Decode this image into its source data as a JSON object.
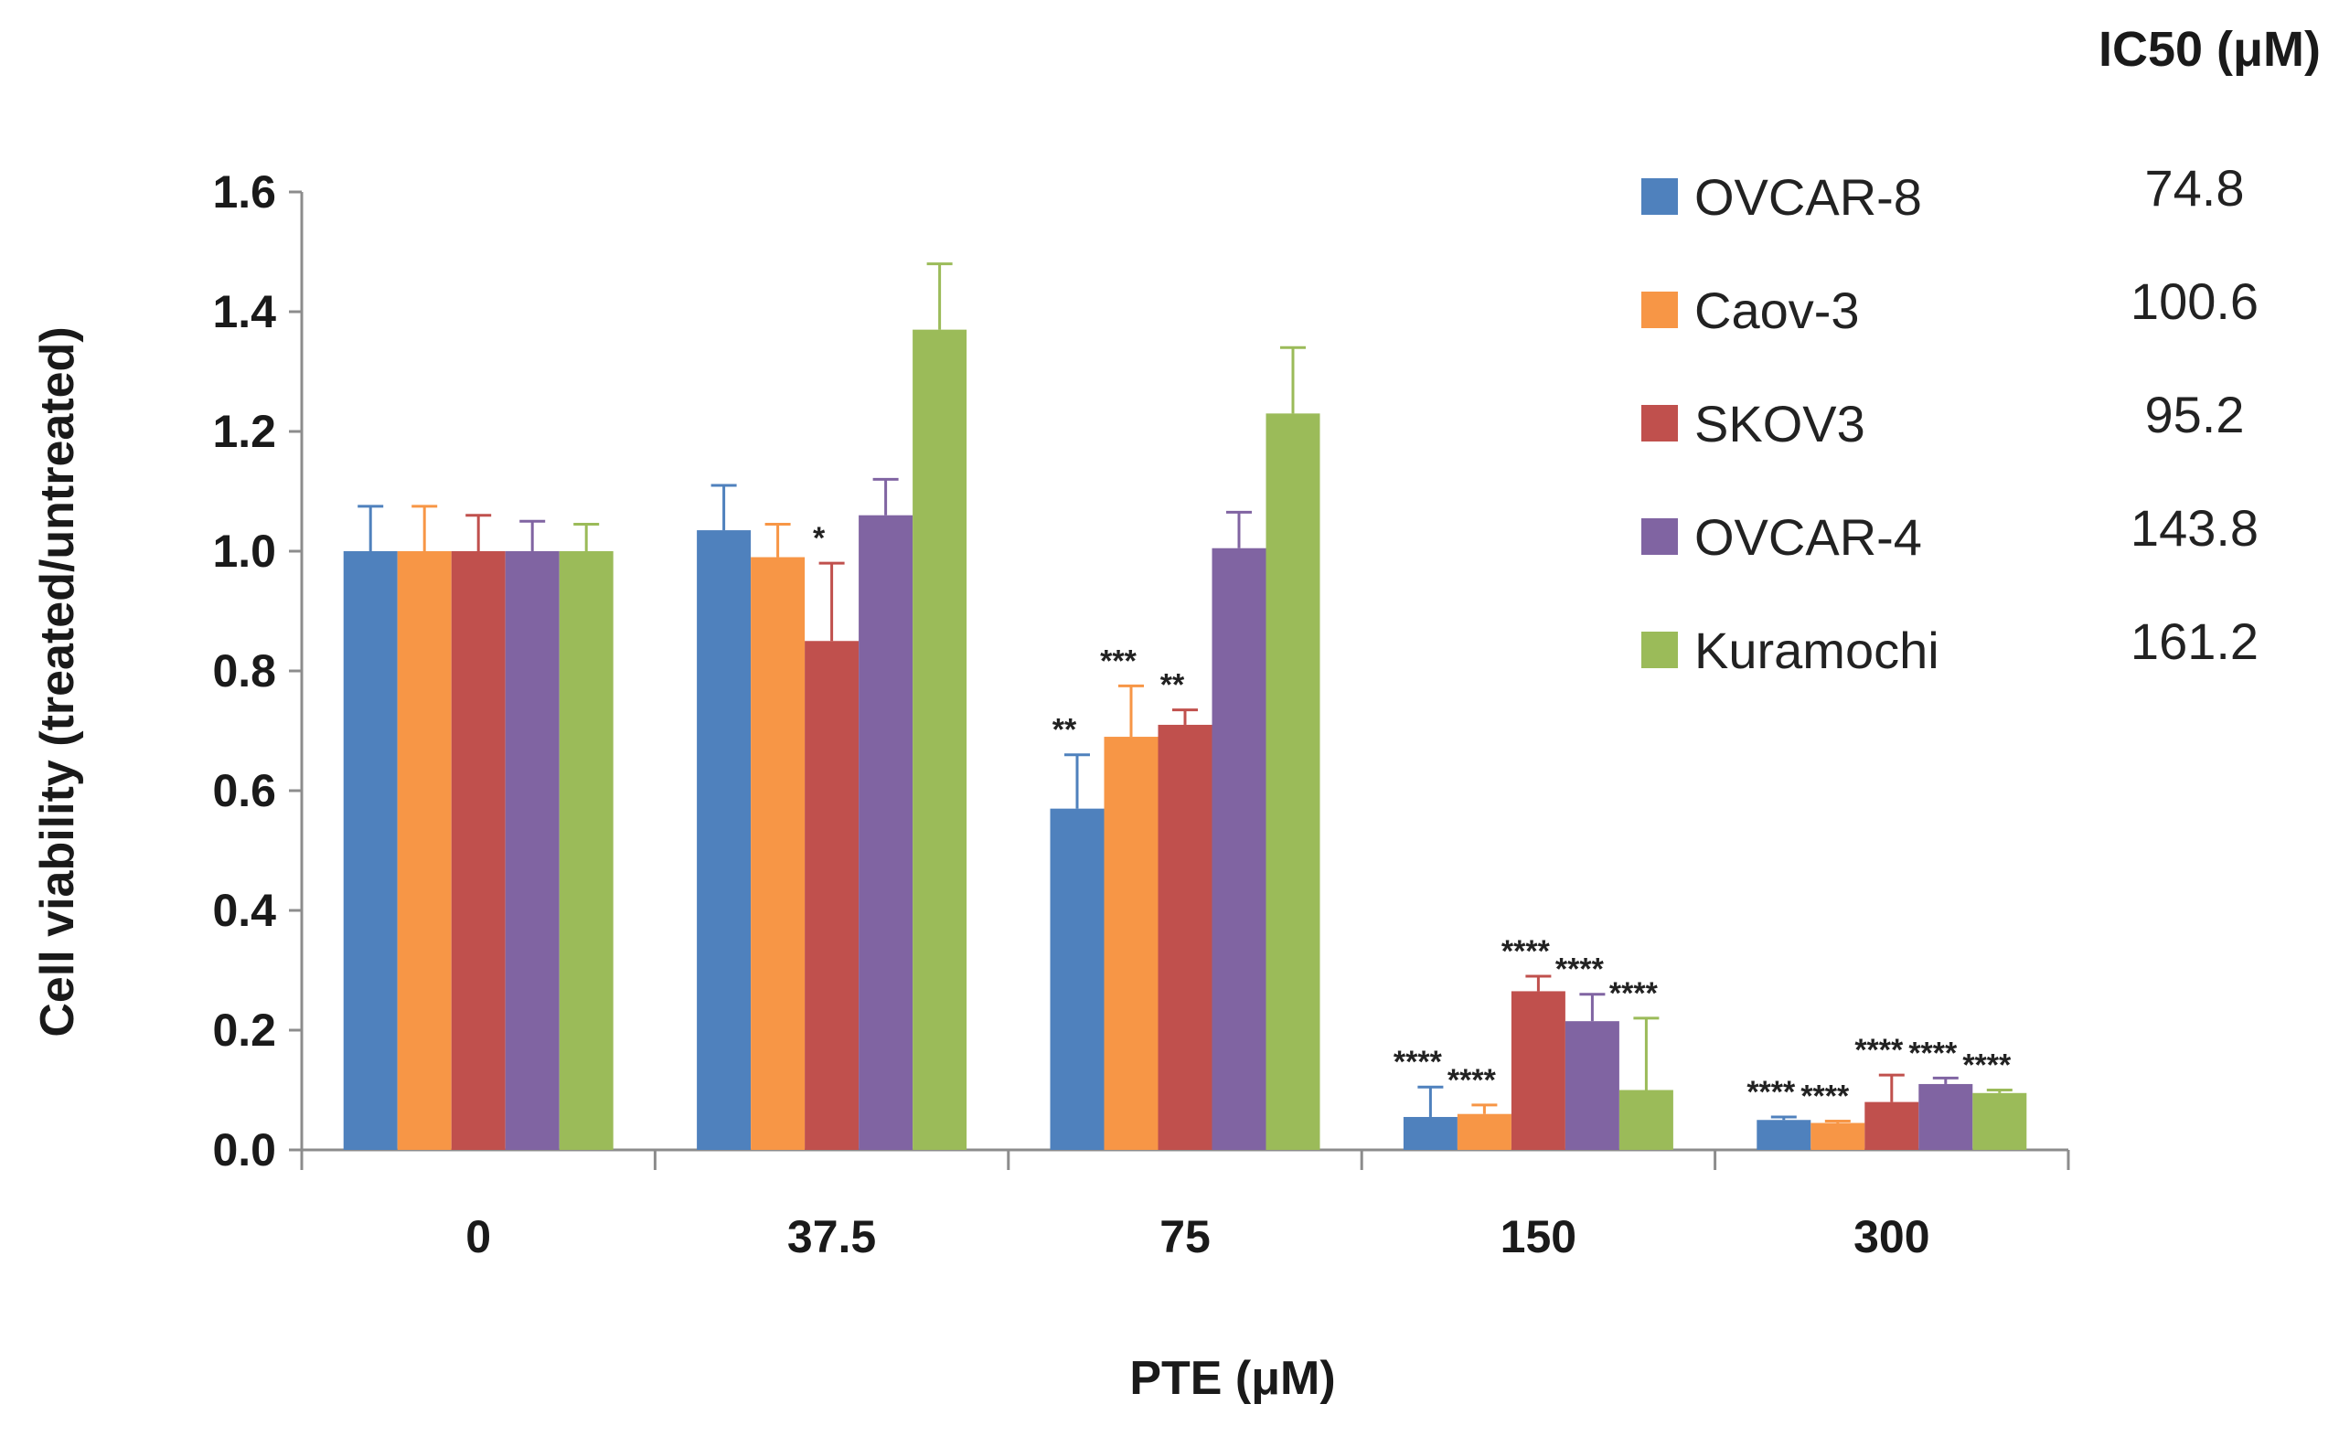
{
  "chart_data": {
    "type": "bar",
    "title": "",
    "xlabel": "PTE (μM)",
    "ylabel": "Cell viability (treated/untreated)",
    "ylim": [
      0,
      1.6
    ],
    "yticks": [
      "0.0",
      "0.2",
      "0.4",
      "0.6",
      "0.8",
      "1.0",
      "1.2",
      "1.4",
      "1.6"
    ],
    "categories": [
      "0",
      "37.5",
      "75",
      "150",
      "300"
    ],
    "series": [
      {
        "name": "OVCAR-8",
        "color": "#4f81bd",
        "ic50": "74.8",
        "values": [
          1.0,
          1.035,
          0.57,
          0.055,
          0.05
        ],
        "errors": [
          0.075,
          0.075,
          0.09,
          0.05,
          0.005
        ],
        "sig": [
          "",
          "",
          "**",
          "****",
          "****"
        ]
      },
      {
        "name": "Caov-3",
        "color": "#f79646",
        "ic50": "100.6",
        "values": [
          1.0,
          0.99,
          0.69,
          0.06,
          0.045
        ],
        "errors": [
          0.075,
          0.055,
          0.085,
          0.015,
          0.003
        ],
        "sig": [
          "",
          "",
          "***",
          "****",
          "****"
        ]
      },
      {
        "name": "SKOV3",
        "color": "#c0504d",
        "ic50": "95.2",
        "values": [
          1.0,
          0.85,
          0.71,
          0.265,
          0.08
        ],
        "errors": [
          0.06,
          0.13,
          0.025,
          0.025,
          0.045
        ],
        "sig": [
          "",
          "*",
          "**",
          "****",
          "****"
        ]
      },
      {
        "name": "OVCAR-4",
        "color": "#8064a2",
        "ic50": "143.8",
        "values": [
          1.0,
          1.06,
          1.005,
          0.215,
          0.11
        ],
        "errors": [
          0.05,
          0.06,
          0.06,
          0.045,
          0.01
        ],
        "sig": [
          "",
          "",
          "",
          "****",
          "****"
        ]
      },
      {
        "name": "Kuramochi",
        "color": "#9bbb59",
        "ic50": "161.2",
        "values": [
          1.0,
          1.37,
          1.23,
          0.1,
          0.095
        ],
        "errors": [
          0.045,
          0.11,
          0.11,
          0.12,
          0.005
        ],
        "sig": [
          "",
          "",
          "",
          "****",
          "****"
        ]
      }
    ],
    "legend_title": "IC50 (μM)",
    "legend_position": "top-right"
  }
}
